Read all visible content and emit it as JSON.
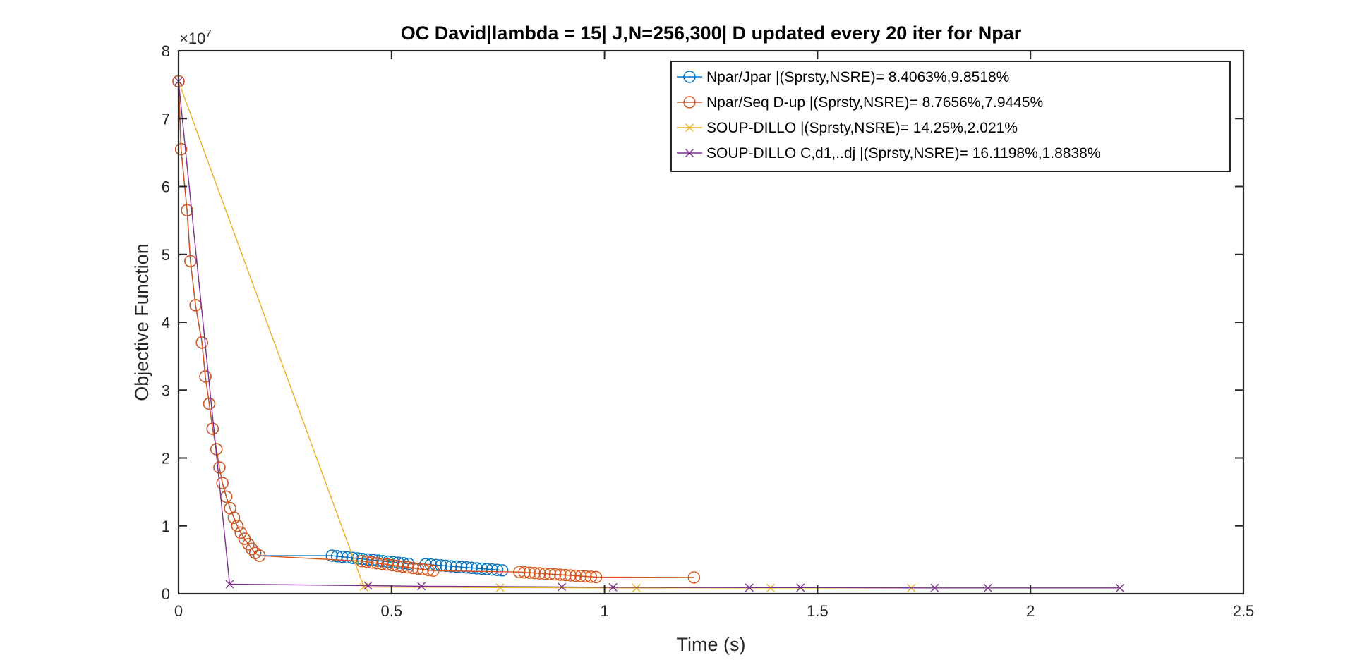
{
  "chart_data": {
    "type": "line",
    "title": "OC David|lambda = 15| J,N=256,300| D updated every 20 iter for Npar",
    "xlabel": "Time (s)",
    "ylabel": "Objective Function",
    "xlim": [
      0,
      2.5
    ],
    "ylim": [
      0,
      80000000
    ],
    "x_ticks": [
      0,
      0.5,
      1,
      1.5,
      2,
      2.5
    ],
    "x_tick_labels": [
      "0",
      "0.5",
      "1",
      "1.5",
      "2",
      "2.5"
    ],
    "y_ticks": [
      0,
      10000000,
      20000000,
      30000000,
      40000000,
      50000000,
      60000000,
      70000000,
      80000000
    ],
    "y_tick_labels": [
      "0",
      "1",
      "2",
      "3",
      "4",
      "5",
      "6",
      "7",
      "8"
    ],
    "y_exponent_base": "×10",
    "y_exponent_power": "7",
    "grid": false,
    "legend_position": "top-right",
    "series": [
      {
        "name": "Npar/Jpar |(Sprsty,NSRE)= 8.4063%,9.8518%",
        "color": "#0072BD",
        "marker": "circle",
        "x": [
          0,
          0.006,
          0.02,
          0.028,
          0.04,
          0.055,
          0.063,
          0.072,
          0.08,
          0.089,
          0.096,
          0.103,
          0.112,
          0.121,
          0.13,
          0.138,
          0.146,
          0.155,
          0.164,
          0.172,
          0.18,
          0.19,
          0.36,
          0.372,
          0.384,
          0.396,
          0.408,
          0.42,
          0.432,
          0.444,
          0.456,
          0.468,
          0.48,
          0.492,
          0.504,
          0.516,
          0.528,
          0.54,
          0.58,
          0.592,
          0.604,
          0.616,
          0.628,
          0.64,
          0.652,
          0.664,
          0.676,
          0.688,
          0.7,
          0.712,
          0.724,
          0.736,
          0.748,
          0.76
        ],
        "y": [
          75500000,
          65500000,
          56500000,
          49000000,
          42500000,
          37000000,
          32000000,
          28000000,
          24300000,
          21300000,
          18600000,
          16300000,
          14300000,
          12600000,
          11200000,
          10000000,
          9000000,
          8100000,
          7300000,
          6600000,
          6000000,
          5600000,
          5600000,
          5520000,
          5440000,
          5360000,
          5280000,
          5200000,
          5120000,
          5040000,
          4960000,
          4880000,
          4800000,
          4720000,
          4640000,
          4560000,
          4480000,
          4400000,
          4350000,
          4290000,
          4230000,
          4170000,
          4110000,
          4050000,
          3990000,
          3930000,
          3870000,
          3810000,
          3750000,
          3690000,
          3630000,
          3570000,
          3510000,
          3450000
        ]
      },
      {
        "name": "Npar/Seq D-up |(Sprsty,NSRE)= 8.7656%,7.9445%",
        "color": "#D95319",
        "marker": "circle",
        "x": [
          0,
          0.006,
          0.02,
          0.028,
          0.04,
          0.055,
          0.063,
          0.072,
          0.08,
          0.089,
          0.096,
          0.103,
          0.112,
          0.121,
          0.13,
          0.138,
          0.146,
          0.155,
          0.164,
          0.172,
          0.18,
          0.19,
          0.43,
          0.442,
          0.454,
          0.466,
          0.478,
          0.49,
          0.502,
          0.514,
          0.526,
          0.538,
          0.55,
          0.562,
          0.574,
          0.586,
          0.598,
          0.8,
          0.812,
          0.824,
          0.836,
          0.848,
          0.86,
          0.872,
          0.884,
          0.896,
          0.908,
          0.92,
          0.932,
          0.944,
          0.956,
          0.968,
          0.98,
          1.21
        ],
        "y": [
          75500000,
          65500000,
          56500000,
          49000000,
          42500000,
          37000000,
          32000000,
          28000000,
          24300000,
          21300000,
          18600000,
          16300000,
          14300000,
          12600000,
          11200000,
          10000000,
          9000000,
          8100000,
          7300000,
          6600000,
          6000000,
          5600000,
          4800000,
          4700000,
          4600000,
          4500000,
          4400000,
          4300000,
          4200000,
          4100000,
          4000000,
          3900000,
          3800000,
          3700000,
          3600000,
          3500000,
          3400000,
          3200000,
          3150000,
          3100000,
          3050000,
          3000000,
          2950000,
          2900000,
          2850000,
          2800000,
          2750000,
          2700000,
          2650000,
          2600000,
          2550000,
          2500000,
          2450000,
          2400000
        ]
      },
      {
        "name": "SOUP-DILLO |(Sprsty,NSRE)= 14.25%,2.021%",
        "color": "#EDB120",
        "marker": "x",
        "x": [
          0,
          0.435,
          0.755,
          1.075,
          1.39,
          1.72
        ],
        "y": [
          75500000,
          1000000,
          900000,
          850000,
          850000,
          850000
        ]
      },
      {
        "name": "SOUP-DILLO C,d1,..dj |(Sprsty,NSRE)= 16.1198%,1.8838%",
        "color": "#7E2F8E",
        "marker": "x",
        "x": [
          0,
          0.12,
          0.445,
          0.57,
          0.9,
          1.02,
          1.34,
          1.46,
          1.775,
          1.9,
          2.21
        ],
        "y": [
          75500000,
          1400000,
          1200000,
          1100000,
          1000000,
          950000,
          900000,
          900000,
          850000,
          850000,
          850000
        ]
      }
    ]
  }
}
